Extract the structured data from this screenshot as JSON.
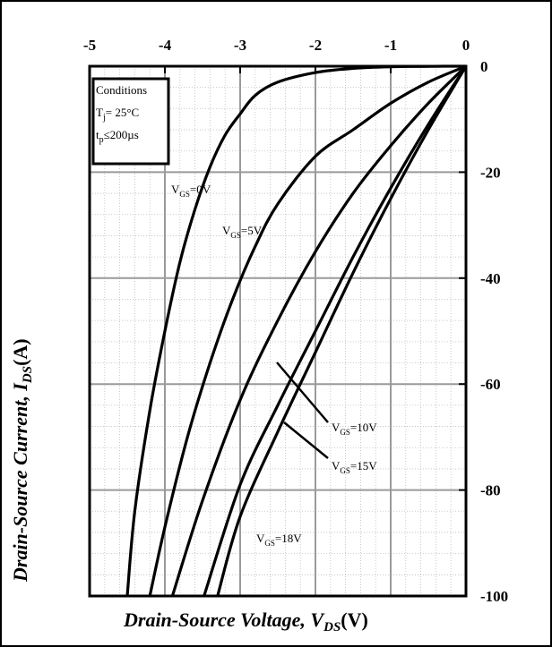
{
  "chart_data": {
    "type": "line",
    "title": "",
    "xlabel": {
      "main": "Drain-Source Voltage, ",
      "sym": "V",
      "sub": "DS",
      "unit": "(V)"
    },
    "ylabel": {
      "main": "Drain-Source Current, ",
      "sym": "I",
      "sub": "DS",
      "unit": "(A)"
    },
    "xlim": [
      -5,
      0
    ],
    "ylim": [
      -100,
      0
    ],
    "x_ticks": [
      -5,
      -4,
      -3,
      -2,
      -1,
      0
    ],
    "y_ticks": [
      0,
      -20,
      -40,
      -60,
      -80,
      -100
    ],
    "x_ticks_position": "top",
    "y_ticks_position": "right",
    "grid": true,
    "minor_grid": true,
    "conditions": {
      "title": "Conditions",
      "line1": {
        "main": "T",
        "sub": "j",
        "rest": "= 25°C"
      },
      "line2": {
        "main": "t",
        "sub": "p",
        "rest": "≤200µs"
      }
    },
    "series": [
      {
        "name": "VGS=0V",
        "label": {
          "main": "V",
          "sub": "GS",
          "rest": "=0V"
        },
        "x": [
          0,
          -0.3,
          -0.6,
          -1.0,
          -1.5,
          -2.0,
          -2.5,
          -2.8,
          -3.0,
          -3.2,
          -3.4,
          -3.6,
          -3.8,
          -4.0,
          -4.2,
          -4.4,
          -4.5
        ],
        "y": [
          0,
          0,
          -0.05,
          -0.1,
          -0.4,
          -1.2,
          -3,
          -5.5,
          -9,
          -13,
          -19,
          -27,
          -37,
          -50,
          -65,
          -84,
          -100
        ]
      },
      {
        "name": "VGS=5V",
        "label": {
          "main": "V",
          "sub": "GS",
          "rest": "=5V"
        },
        "x": [
          0,
          -0.5,
          -1.0,
          -1.5,
          -2.0,
          -2.5,
          -2.8,
          -3.1,
          -3.4,
          -3.7,
          -4.0,
          -4.2
        ],
        "y": [
          0,
          -3,
          -7,
          -12,
          -17,
          -26,
          -34,
          -44,
          -56,
          -70,
          -87,
          -100
        ]
      },
      {
        "name": "VGS=10V",
        "label": {
          "main": "V",
          "sub": "GS",
          "rest": "=10V"
        },
        "x": [
          0,
          -0.5,
          -1.0,
          -1.5,
          -2.0,
          -2.5,
          -3.0,
          -3.5,
          -3.9
        ],
        "y": [
          0,
          -7,
          -15,
          -24,
          -35,
          -48,
          -63,
          -82,
          -100
        ]
      },
      {
        "name": "VGS=15V",
        "label": {
          "main": "V",
          "sub": "GS",
          "rest": "=15V"
        },
        "x": [
          0,
          -0.5,
          -1.0,
          -1.5,
          -2.0,
          -2.5,
          -3.0,
          -3.48
        ],
        "y": [
          0,
          -11,
          -23,
          -36,
          -50,
          -64,
          -79,
          -100
        ]
      },
      {
        "name": "VGS=18V",
        "label": {
          "main": "V",
          "sub": "GS",
          "rest": "=18V"
        },
        "x": [
          0,
          -0.5,
          -1.0,
          -1.5,
          -2.0,
          -2.5,
          -3.0,
          -3.3
        ],
        "y": [
          0,
          -12,
          -25,
          -39,
          -54,
          -69,
          -85,
          -100
        ]
      }
    ]
  }
}
